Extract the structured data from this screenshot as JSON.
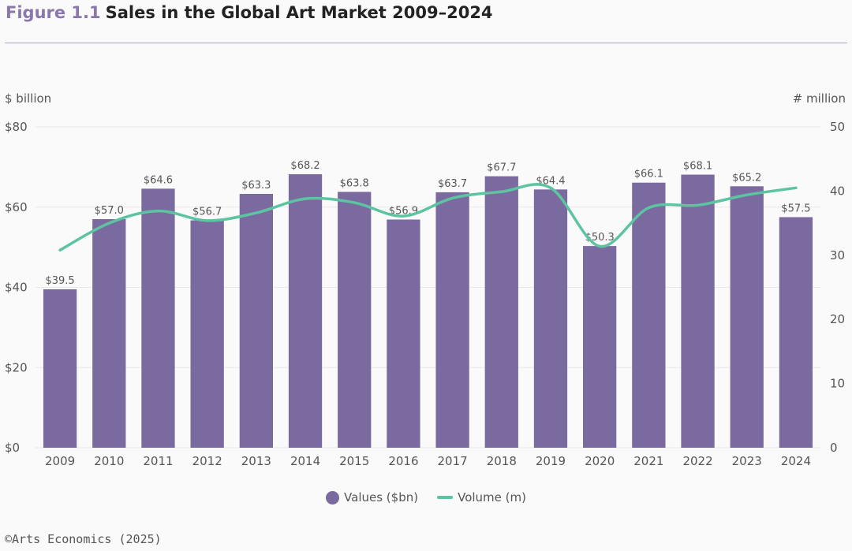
{
  "header": {
    "figure_number": "Figure 1.1",
    "title": "Sales in the Global Art Market 2009–2024"
  },
  "source": "©Arts Economics (2025)",
  "colors": {
    "bar": "#7a6aa0",
    "line": "#5dc4a2",
    "title_accent": "#8a77ab",
    "rule": "#a9a1c2"
  },
  "chart_data": {
    "type": "bar",
    "title": "Sales in the Global Art Market 2009–2024",
    "categories": [
      "2009",
      "2010",
      "2011",
      "2012",
      "2013",
      "2014",
      "2015",
      "2016",
      "2017",
      "2018",
      "2019",
      "2020",
      "2021",
      "2022",
      "2023",
      "2024"
    ],
    "y_left_label": "$ billion",
    "y_right_label": "# million",
    "y_left_range": [
      0,
      80
    ],
    "y_left_ticks": [
      "$0",
      "$20",
      "$40",
      "$60",
      "$80"
    ],
    "y_right_range": [
      0,
      50
    ],
    "y_right_ticks": [
      "0",
      "10",
      "20",
      "30",
      "40",
      "50"
    ],
    "grid": true,
    "legend_position": "bottom-center",
    "series": [
      {
        "name": "Values ($bn)",
        "type": "bar",
        "axis": "left",
        "values": [
          39.5,
          57.0,
          64.6,
          56.7,
          63.3,
          68.2,
          63.8,
          56.9,
          63.7,
          67.7,
          64.4,
          50.3,
          66.1,
          68.1,
          65.2,
          57.5
        ],
        "labels": [
          "$39.5",
          "$57.0",
          "$64.6",
          "$56.7",
          "$63.3",
          "$68.2",
          "$63.8",
          "$56.9",
          "$63.7",
          "$67.7",
          "$64.4",
          "$50.3",
          "$66.1",
          "$68.1",
          "$65.2",
          "$57.5"
        ]
      },
      {
        "name": "Volume (m)",
        "type": "line",
        "axis": "right",
        "values": [
          30.8,
          35.0,
          36.9,
          35.4,
          36.6,
          38.8,
          38.2,
          36.1,
          38.9,
          39.9,
          40.5,
          31.4,
          37.4,
          37.8,
          39.4,
          40.5
        ]
      }
    ]
  }
}
